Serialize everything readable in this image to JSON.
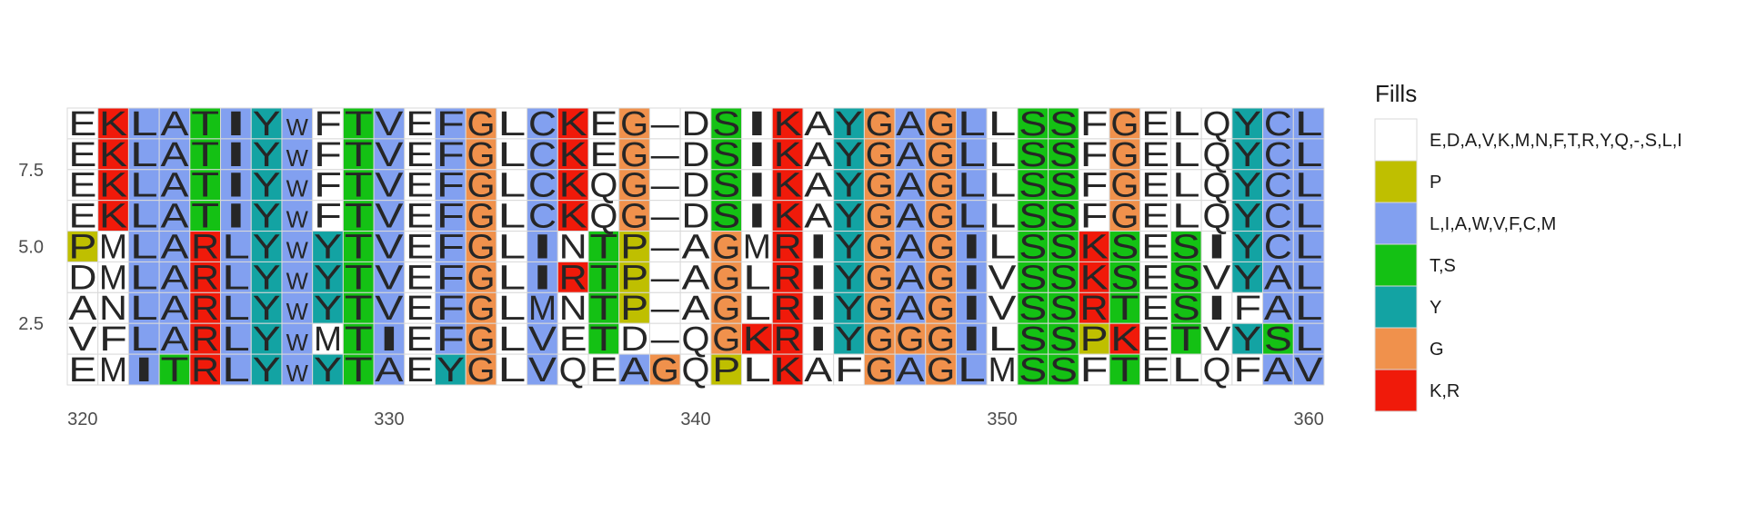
{
  "chart_data": {
    "type": "heatmap",
    "title": "",
    "xlabel": "",
    "ylabel": "",
    "x_start": 320,
    "x_ticks": [
      320,
      330,
      340,
      350,
      360
    ],
    "y_ticks": [
      "2.5",
      "5.0",
      "7.5"
    ],
    "y_tick_values": [
      2.5,
      5.0,
      7.5
    ],
    "sequences_top_to_bottom": [
      "EKLATIYWFTVEFGLCKEG-DSIKAYGAGLLSSFGELQYCL",
      "EKLATIYWFTVEFGLCKEG-DSIKAYGAGLLSSFGELQYCL",
      "EKLATIYWFTVEFGLCKQG-DSIKAYGAGLLSSFGELQYCL",
      "EKLATIYWFTVEFGLCKQG-DSIKAYGAGLLSSFGELQYCL",
      "PMLARLYWYTVEFGLINTP-AGMRIYGAGILSSKSESIYCL",
      "DMLARLYWYTVEFGLIRTP-AGLRIYGAGIVSSKSESVYAL",
      "ANLARLYWYTVEFGLMNTP-AGLRIYGAGIVSSRTESIFAL",
      "VFLARLYWMTIEFGLVETD-QGKRIYGGGILSSPKETVYSL",
      "EMITRLYWYTAEYGLVQEAGQPLKAFGAGLMSSFTELQFAV"
    ],
    "colored_columns": [
      2,
      3,
      5,
      7,
      10,
      12,
      13,
      15,
      18,
      23,
      26,
      27,
      28,
      29,
      34,
      39,
      40
    ],
    "legend_title": "Fills",
    "groups": [
      {
        "label": "E,D,A,V,K,M,N,F,T,R,Y,Q,-,S,L,I",
        "color": "#ffffff"
      },
      {
        "label": "P",
        "color": "#bfbf00"
      },
      {
        "label": "L,I,A,W,V,F,C,M",
        "color": "#82a0f0"
      },
      {
        "label": "T,S",
        "color": "#14c114"
      },
      {
        "label": "Y",
        "color": "#13a3a3"
      },
      {
        "label": "G",
        "color": "#f0914c"
      },
      {
        "label": "K,R",
        "color": "#f01a0a"
      }
    ]
  }
}
